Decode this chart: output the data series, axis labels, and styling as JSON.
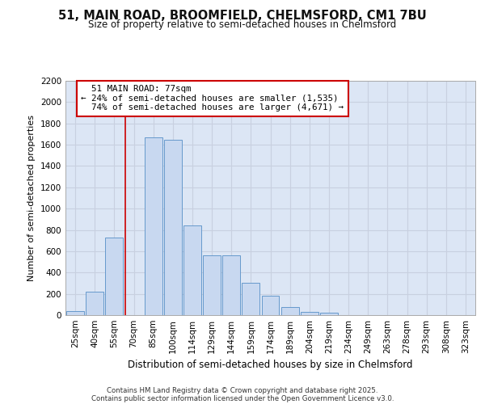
{
  "title1": "51, MAIN ROAD, BROOMFIELD, CHELMSFORD, CM1 7BU",
  "title2": "Size of property relative to semi-detached houses in Chelmsford",
  "xlabel": "Distribution of semi-detached houses by size in Chelmsford",
  "ylabel": "Number of semi-detached properties",
  "categories": [
    "25sqm",
    "40sqm",
    "55sqm",
    "70sqm",
    "85sqm",
    "100sqm",
    "114sqm",
    "129sqm",
    "144sqm",
    "159sqm",
    "174sqm",
    "189sqm",
    "204sqm",
    "219sqm",
    "234sqm",
    "249sqm",
    "263sqm",
    "278sqm",
    "293sqm",
    "308sqm",
    "323sqm"
  ],
  "bar_heights": [
    40,
    220,
    730,
    0,
    1670,
    1650,
    840,
    560,
    560,
    300,
    185,
    75,
    30,
    20,
    0,
    0,
    0,
    0,
    0,
    0,
    0
  ],
  "bar_color": "#c8d8f0",
  "bar_edge_color": "#6699cc",
  "grid_color": "#c8d0e0",
  "background_color": "#dce6f5",
  "ylim": [
    0,
    2200
  ],
  "yticks": [
    0,
    200,
    400,
    600,
    800,
    1000,
    1200,
    1400,
    1600,
    1800,
    2000,
    2200
  ],
  "property_label": "51 MAIN ROAD: 77sqm",
  "pct_smaller": 24,
  "pct_larger": 74,
  "count_smaller": 1535,
  "count_larger": 4671,
  "vline_x_index": 3,
  "annotation_box_color": "#ffffff",
  "annotation_box_edge": "#cc0000",
  "footer1": "Contains HM Land Registry data © Crown copyright and database right 2025.",
  "footer2": "Contains public sector information licensed under the Open Government Licence v3.0."
}
